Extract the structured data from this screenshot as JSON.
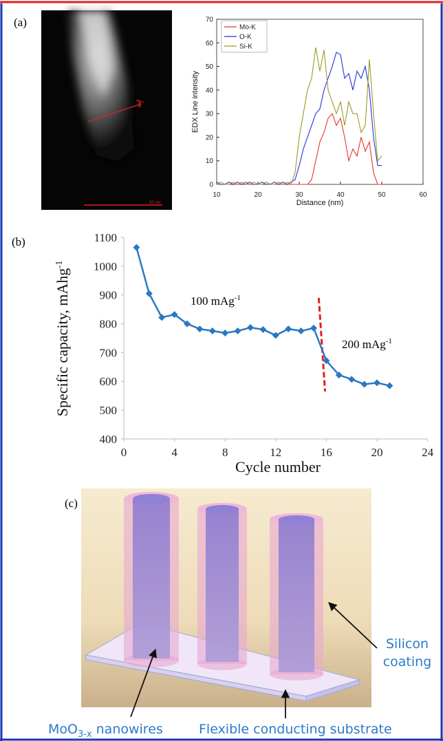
{
  "panel_labels": [
    "(a)",
    "(b)",
    "(c)"
  ],
  "scale_bar": "50 nm",
  "chart_data": [
    {
      "type": "line",
      "x_label": "Distance (nm)",
      "y_label": "EDX Line intensity",
      "x": [
        10,
        11,
        12,
        13,
        14,
        15,
        16,
        17,
        18,
        19,
        20,
        21,
        22,
        23,
        24,
        25,
        26,
        27,
        28,
        29,
        30,
        31,
        32,
        33,
        34,
        35,
        36,
        37,
        38,
        39,
        40,
        41,
        42,
        43,
        44,
        45,
        46,
        47,
        48,
        49,
        50
      ],
      "series": [
        {
          "name": "Mo-K",
          "color": "#e8322c",
          "values": [
            0,
            0,
            0,
            1,
            0,
            0,
            0,
            1,
            0,
            0,
            0,
            0,
            1,
            0,
            0,
            0,
            0,
            0,
            0,
            0,
            0,
            0,
            0,
            2,
            10,
            18,
            22,
            28,
            30,
            25,
            28,
            20,
            10,
            15,
            12,
            20,
            14,
            18,
            5,
            0,
            0
          ]
        },
        {
          "name": "O-K",
          "color": "#2233dd",
          "values": [
            1,
            0,
            0,
            1,
            0,
            1,
            0,
            0,
            1,
            0,
            0,
            1,
            0,
            0,
            1,
            0,
            1,
            0,
            1,
            2,
            8,
            15,
            20,
            25,
            30,
            32,
            40,
            45,
            50,
            56,
            55,
            45,
            47,
            40,
            48,
            45,
            50,
            40,
            20,
            8,
            8
          ]
        },
        {
          "name": "Si-K",
          "color": "#9a9a28",
          "values": [
            0,
            1,
            0,
            0,
            1,
            0,
            1,
            0,
            0,
            1,
            0,
            0,
            1,
            0,
            0,
            1,
            0,
            1,
            0,
            5,
            20,
            30,
            40,
            45,
            58,
            48,
            57,
            40,
            35,
            30,
            35,
            25,
            35,
            30,
            30,
            22,
            25,
            53,
            30,
            10,
            12
          ]
        }
      ],
      "xlim": [
        10,
        60
      ],
      "xticks": [
        10,
        20,
        30,
        40,
        50,
        60
      ],
      "ylim": [
        0,
        70
      ],
      "yticks": [
        0,
        10,
        20,
        30,
        40,
        50,
        60,
        70
      ],
      "legend": "upper-left"
    },
    {
      "type": "line",
      "x_label": "Cycle number",
      "y_label": "Specific capacity, mAhg",
      "y_label_sup": "-1",
      "x": [
        1,
        2,
        3,
        4,
        5,
        6,
        7,
        8,
        9,
        10,
        11,
        12,
        13,
        14,
        15,
        16,
        17,
        18,
        19,
        20,
        21
      ],
      "series": [
        {
          "color": "#2a78c0",
          "marker": "diamond",
          "values": [
            1065,
            905,
            822,
            832,
            800,
            782,
            775,
            768,
            775,
            787,
            780,
            760,
            782,
            775,
            785,
            672,
            622,
            607,
            590,
            595,
            585
          ]
        }
      ],
      "xlim": [
        0,
        24
      ],
      "xticks": [
        0,
        4,
        8,
        12,
        16,
        20,
        24
      ],
      "ylim": [
        400,
        1100
      ],
      "yticks": [
        400,
        500,
        600,
        700,
        800,
        900,
        1000,
        1100
      ],
      "reference_line": {
        "x": [
          15.4,
          15.9
        ],
        "y": [
          890,
          565
        ],
        "color": "#e02020"
      },
      "annotations": [
        {
          "text": "100 mAg",
          "sup": "-1"
        },
        {
          "text": "200 mAg",
          "sup": "-1"
        }
      ]
    }
  ],
  "diagram": {
    "silicon": [
      "Silicon",
      "coating"
    ],
    "nanowires": {
      "formula": "MoO",
      "subscript": "3-x",
      "text": "nanowires"
    },
    "substrate": "Flexible conducting substrate"
  }
}
